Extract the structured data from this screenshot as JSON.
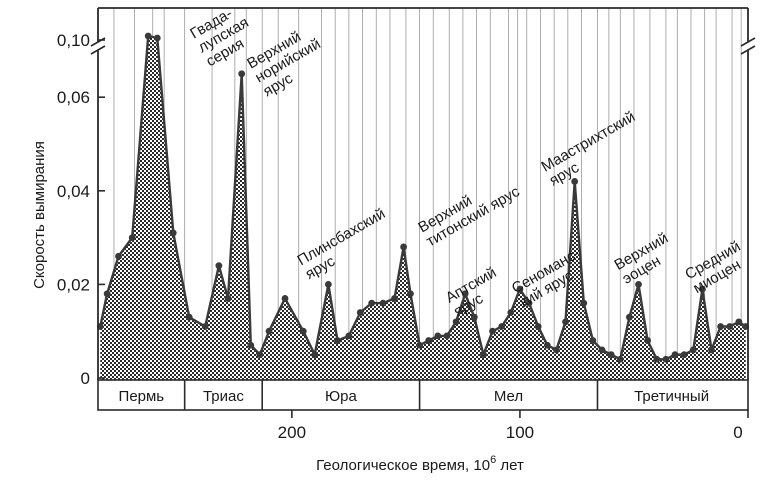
{
  "chart_data": {
    "type": "area",
    "xlabel": "Геологическое время, 10",
    "xlabel_sup": "6",
    "xlabel_suffix": " лет",
    "ylabel": "Скорость вымирания",
    "x_reversed": true,
    "xlim": [
      0,
      285
    ],
    "ylim": [
      0,
      0.1
    ],
    "y_break_above": 0.07,
    "x_ticks": [
      {
        "value": 200,
        "label": "200"
      },
      {
        "value": 100,
        "label": "100"
      },
      {
        "value": 0,
        "label": "0"
      }
    ],
    "y_ticks": [
      {
        "value": 0,
        "label": "0"
      },
      {
        "value": 0.02,
        "label": "0,02"
      },
      {
        "value": 0.04,
        "label": "0,04"
      },
      {
        "value": 0.06,
        "label": "0,06"
      },
      {
        "value": 0.1,
        "label": "0,10"
      }
    ],
    "stage_boundaries": [
      278,
      269,
      261,
      256,
      247,
      235,
      225,
      220,
      213,
      206,
      197,
      187,
      181,
      175,
      169,
      163,
      157,
      150,
      144,
      138,
      131,
      125,
      119,
      113,
      105,
      101,
      97,
      91,
      85,
      79,
      73,
      66,
      61,
      56,
      50,
      43,
      36,
      31,
      25,
      19,
      14,
      7,
      3
    ],
    "series": [
      {
        "x": [
          284,
          281,
          276,
          270,
          263,
          259,
          252,
          245,
          238,
          232,
          228,
          222,
          218,
          214,
          210,
          203,
          195,
          190,
          184,
          180,
          175,
          170,
          165,
          160,
          155,
          151,
          148,
          144,
          140,
          136,
          132,
          128,
          124,
          120,
          116,
          112,
          108,
          104,
          100,
          96,
          92,
          88,
          84,
          80,
          76,
          72,
          68,
          64,
          60,
          56,
          52,
          48,
          44,
          40,
          36,
          32,
          28,
          24,
          20,
          16,
          12,
          8,
          4,
          1
        ],
        "y": [
          0.011,
          0.018,
          0.026,
          0.03,
          0.104,
          0.102,
          0.031,
          0.013,
          0.011,
          0.024,
          0.017,
          0.065,
          0.007,
          0.005,
          0.01,
          0.017,
          0.01,
          0.005,
          0.02,
          0.008,
          0.009,
          0.014,
          0.016,
          0.016,
          0.017,
          0.028,
          0.018,
          0.007,
          0.008,
          0.009,
          0.009,
          0.012,
          0.018,
          0.013,
          0.005,
          0.01,
          0.011,
          0.014,
          0.019,
          0.016,
          0.011,
          0.007,
          0.006,
          0.012,
          0.042,
          0.016,
          0.008,
          0.006,
          0.005,
          0.004,
          0.013,
          0.02,
          0.008,
          0.004,
          0.004,
          0.005,
          0.005,
          0.006,
          0.019,
          0.006,
          0.011,
          0.011,
          0.012,
          0.011
        ]
      }
    ],
    "periods": [
      {
        "label": "Пермь",
        "from": 285,
        "to": 247
      },
      {
        "label": "Триас",
        "from": 247,
        "to": 213
      },
      {
        "label": "Юра",
        "from": 213,
        "to": 144
      },
      {
        "label": "Мел",
        "from": 144,
        "to": 66
      },
      {
        "label": "Третичный",
        "from": 66,
        "to": 1
      }
    ],
    "annotations": [
      {
        "lines": [
          "Гвада-",
          "лупская",
          "серия"
        ],
        "x": 243,
        "y": 0.101
      },
      {
        "lines": [
          "Верхний",
          "норийский",
          "ярус"
        ],
        "x": 218,
        "y": 0.071
      },
      {
        "lines": [
          "Плинсбахский",
          "ярус"
        ],
        "x": 196,
        "y": 0.024
      },
      {
        "lines": [
          "Верхний",
          "титонский ярус"
        ],
        "x": 143,
        "y": 0.031
      },
      {
        "lines": [
          "Аптский",
          "ярус"
        ],
        "x": 131,
        "y": 0.016
      },
      {
        "lines": [
          "Сеноманс-",
          "кий ярус"
        ],
        "x": 102,
        "y": 0.018
      },
      {
        "lines": [
          "Маастрихтский",
          "ярус"
        ],
        "x": 89,
        "y": 0.044
      },
      {
        "lines": [
          "Верхний",
          "эоцен"
        ],
        "x": 57,
        "y": 0.023
      },
      {
        "lines": [
          "Средний",
          "миоцен"
        ],
        "x": 26,
        "y": 0.021
      }
    ]
  }
}
